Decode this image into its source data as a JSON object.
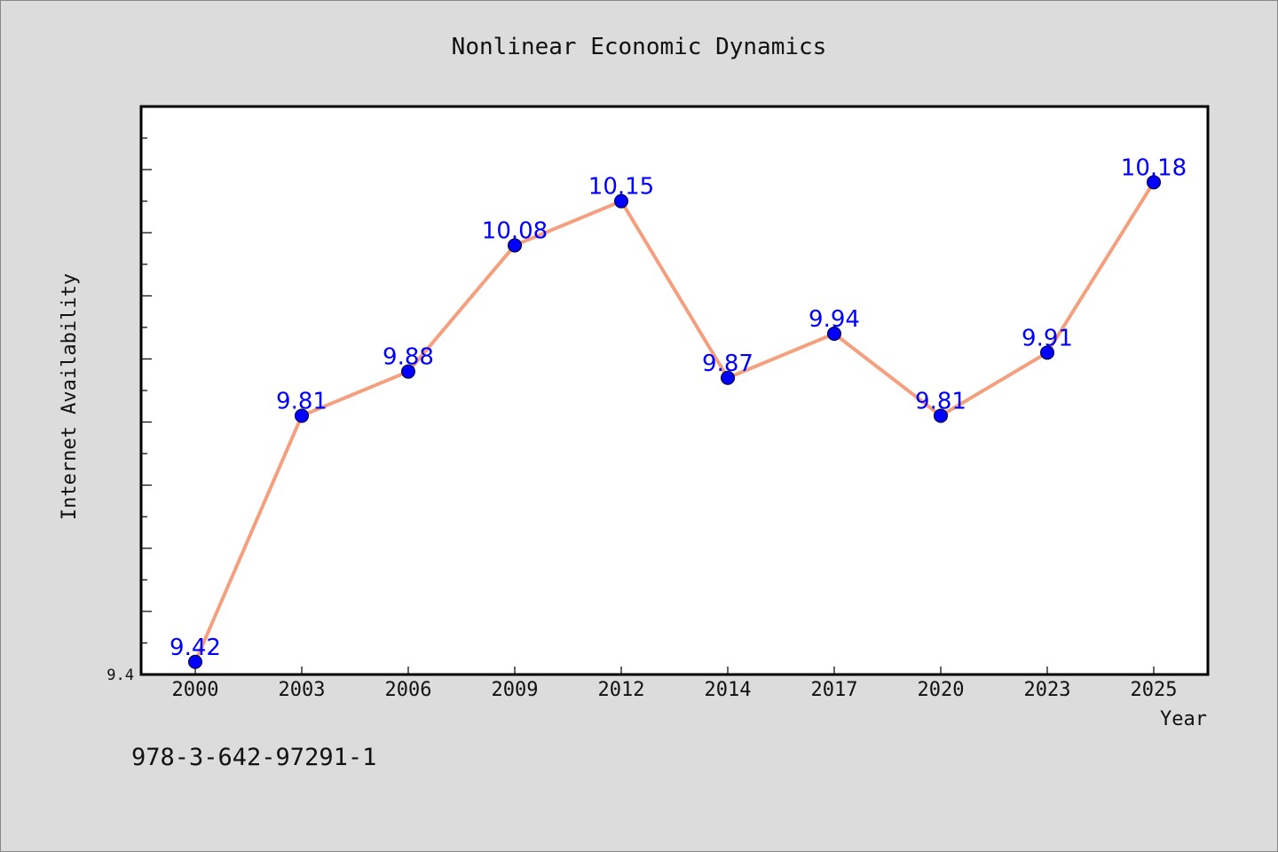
{
  "chart_data": {
    "type": "line",
    "title": "Nonlinear Economic Dynamics",
    "xlabel": "Year",
    "ylabel": "Internet Availability",
    "categories": [
      "2000",
      "2003",
      "2006",
      "2009",
      "2012",
      "2014",
      "2017",
      "2020",
      "2023",
      "2025"
    ],
    "series": [
      {
        "values": [
          9.42,
          9.81,
          9.88,
          10.08,
          10.15,
          9.87,
          9.94,
          9.81,
          9.91,
          10.18
        ],
        "line_color": "#f4a07e",
        "marker_color": "#0000ff"
      }
    ],
    "data_labels": [
      "9.42",
      "9.81",
      "9.88",
      "10.08",
      "10.15",
      "9.87",
      "9.94",
      "9.81",
      "9.91",
      "10.18"
    ],
    "data_label_color": "#0000ff",
    "ylim": [
      9.4,
      10.3
    ],
    "yticks_labeled": [
      "9.4"
    ],
    "grid": false,
    "legend": "none"
  },
  "footnote": "978-3-642-97291-1"
}
